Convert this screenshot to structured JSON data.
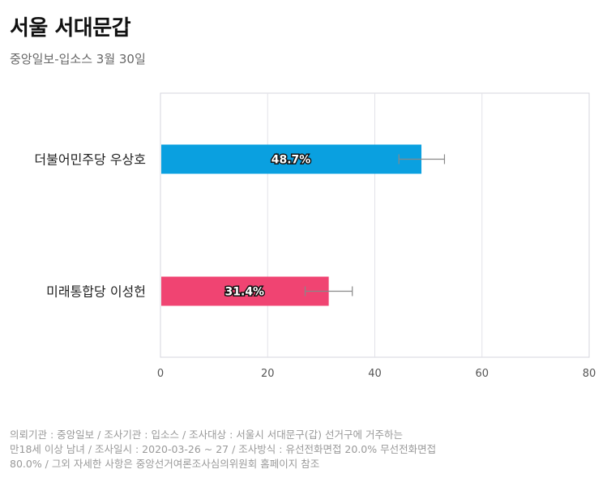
{
  "header": {
    "title": "서울 서대문갑",
    "subtitle": "중앙일보-입소스 3월 30일"
  },
  "chart_data": {
    "type": "bar",
    "orientation": "horizontal",
    "categories": [
      "더불어민주당 우상호",
      "미래통합당 이성헌"
    ],
    "values": [
      48.7,
      31.4
    ],
    "value_labels": [
      "48.7%",
      "31.4%"
    ],
    "error_bars": [
      [
        44.5,
        53.0
      ],
      [
        27.0,
        35.8
      ]
    ],
    "colors": [
      "#0aa0e0",
      "#f04472"
    ],
    "xlim": [
      0,
      80
    ],
    "xticks": [
      "0",
      "20",
      "40",
      "60",
      "80"
    ],
    "grid": true,
    "legend": "none"
  },
  "footnote": {
    "lines": [
      "의뢰기관 : 중앙일보 / 조사기관 : 입소스 / 조사대상 : 서울시 서대문구(갑) 선거구에 거주하는",
      "만18세 이상 남녀 / 조사일시 : 2020-03-26 ~ 27 / 조사방식 : 유선전화면접 20.0% 무선전화면접",
      "80.0% / 그외 자세한 사항은 중앙선거여론조사심의위원회 홈페이지 참조"
    ]
  }
}
